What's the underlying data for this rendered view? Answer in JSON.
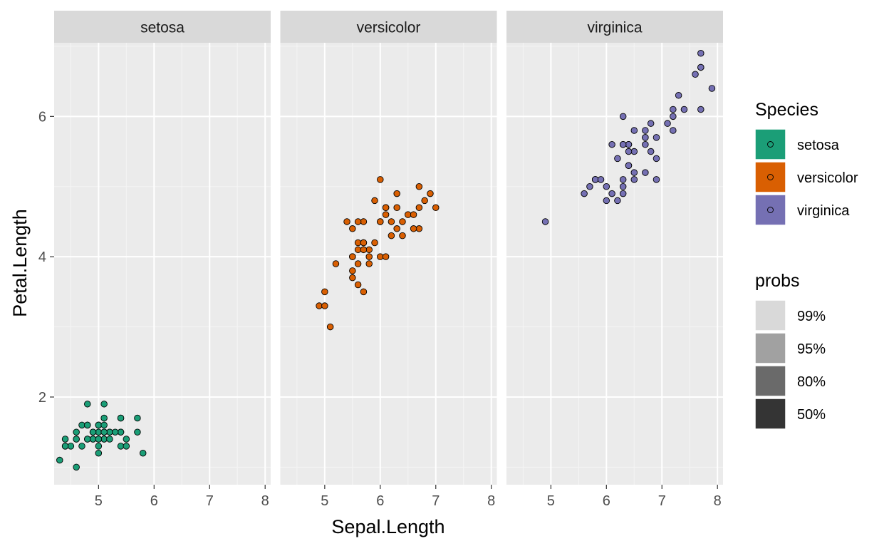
{
  "chart_data": {
    "type": "scatter",
    "facet_variable": "Species",
    "xlabel": "Sepal.Length",
    "ylabel": "Petal.Length",
    "xlim": [
      4.2,
      8.1
    ],
    "ylim": [
      0.75,
      7.05
    ],
    "x_ticks": [
      5,
      6,
      7,
      8
    ],
    "y_ticks": [
      2,
      4,
      6
    ],
    "grid": true,
    "density_levels": [
      "99%",
      "95%",
      "80%",
      "50%"
    ],
    "panels": [
      {
        "name": "setosa",
        "color": "#1B9E77",
        "points": [
          [
            5.1,
            1.4
          ],
          [
            4.9,
            1.4
          ],
          [
            4.7,
            1.3
          ],
          [
            4.6,
            1.5
          ],
          [
            5.0,
            1.4
          ],
          [
            5.4,
            1.7
          ],
          [
            4.6,
            1.4
          ],
          [
            5.0,
            1.5
          ],
          [
            4.4,
            1.4
          ],
          [
            4.9,
            1.5
          ],
          [
            5.4,
            1.5
          ],
          [
            4.8,
            1.6
          ],
          [
            4.8,
            1.4
          ],
          [
            4.3,
            1.1
          ],
          [
            5.8,
            1.2
          ],
          [
            5.7,
            1.5
          ],
          [
            5.4,
            1.3
          ],
          [
            5.1,
            1.4
          ],
          [
            5.7,
            1.7
          ],
          [
            5.1,
            1.5
          ],
          [
            5.4,
            1.7
          ],
          [
            5.1,
            1.5
          ],
          [
            4.6,
            1.0
          ],
          [
            5.1,
            1.7
          ],
          [
            4.8,
            1.9
          ],
          [
            5.0,
            1.6
          ],
          [
            5.0,
            1.6
          ],
          [
            5.2,
            1.5
          ],
          [
            5.2,
            1.4
          ],
          [
            4.7,
            1.6
          ],
          [
            4.8,
            1.6
          ],
          [
            5.4,
            1.5
          ],
          [
            5.2,
            1.5
          ],
          [
            5.5,
            1.4
          ],
          [
            4.9,
            1.5
          ],
          [
            5.0,
            1.2
          ],
          [
            5.5,
            1.3
          ],
          [
            4.9,
            1.4
          ],
          [
            4.4,
            1.3
          ],
          [
            5.1,
            1.5
          ],
          [
            5.0,
            1.3
          ],
          [
            4.5,
            1.3
          ],
          [
            4.4,
            1.3
          ],
          [
            5.0,
            1.6
          ],
          [
            5.1,
            1.9
          ],
          [
            4.8,
            1.4
          ],
          [
            5.1,
            1.6
          ],
          [
            4.6,
            1.4
          ],
          [
            5.3,
            1.5
          ],
          [
            5.0,
            1.4
          ]
        ]
      },
      {
        "name": "versicolor",
        "color": "#D95F02",
        "points": [
          [
            7.0,
            4.7
          ],
          [
            6.4,
            4.5
          ],
          [
            6.9,
            4.9
          ],
          [
            5.5,
            4.0
          ],
          [
            6.5,
            4.6
          ],
          [
            5.7,
            4.5
          ],
          [
            6.3,
            4.7
          ],
          [
            4.9,
            3.3
          ],
          [
            6.6,
            4.6
          ],
          [
            5.2,
            3.9
          ],
          [
            5.0,
            3.5
          ],
          [
            5.9,
            4.2
          ],
          [
            6.0,
            4.0
          ],
          [
            6.1,
            4.7
          ],
          [
            5.6,
            3.6
          ],
          [
            6.7,
            4.4
          ],
          [
            5.6,
            4.5
          ],
          [
            5.8,
            4.1
          ],
          [
            6.2,
            4.5
          ],
          [
            5.6,
            3.9
          ],
          [
            5.9,
            4.8
          ],
          [
            6.1,
            4.0
          ],
          [
            6.3,
            4.9
          ],
          [
            6.1,
            4.7
          ],
          [
            6.4,
            4.3
          ],
          [
            6.6,
            4.4
          ],
          [
            6.8,
            4.8
          ],
          [
            6.7,
            5.0
          ],
          [
            6.0,
            4.5
          ],
          [
            5.7,
            3.5
          ],
          [
            5.5,
            3.8
          ],
          [
            5.5,
            3.7
          ],
          [
            5.8,
            3.9
          ],
          [
            6.0,
            5.1
          ],
          [
            5.4,
            4.5
          ],
          [
            6.0,
            4.5
          ],
          [
            6.7,
            4.7
          ],
          [
            6.3,
            4.4
          ],
          [
            5.6,
            4.1
          ],
          [
            5.5,
            4.0
          ],
          [
            5.5,
            4.4
          ],
          [
            6.1,
            4.6
          ],
          [
            5.8,
            4.0
          ],
          [
            5.0,
            3.3
          ],
          [
            5.6,
            4.2
          ],
          [
            5.7,
            4.2
          ],
          [
            5.7,
            4.2
          ],
          [
            6.2,
            4.3
          ],
          [
            5.1,
            3.0
          ],
          [
            5.7,
            4.1
          ]
        ]
      },
      {
        "name": "virginica",
        "color": "#7570B3",
        "points": [
          [
            6.3,
            6.0
          ],
          [
            5.8,
            5.1
          ],
          [
            7.1,
            5.9
          ],
          [
            6.3,
            5.6
          ],
          [
            6.5,
            5.8
          ],
          [
            7.6,
            6.6
          ],
          [
            4.9,
            4.5
          ],
          [
            7.3,
            6.3
          ],
          [
            6.7,
            5.8
          ],
          [
            7.2,
            6.1
          ],
          [
            6.5,
            5.1
          ],
          [
            6.4,
            5.3
          ],
          [
            6.8,
            5.5
          ],
          [
            5.7,
            5.0
          ],
          [
            5.8,
            5.1
          ],
          [
            6.4,
            5.3
          ],
          [
            6.5,
            5.5
          ],
          [
            7.7,
            6.7
          ],
          [
            7.7,
            6.9
          ],
          [
            6.0,
            5.0
          ],
          [
            6.9,
            5.7
          ],
          [
            5.6,
            4.9
          ],
          [
            7.7,
            6.7
          ],
          [
            6.3,
            4.9
          ],
          [
            6.7,
            5.7
          ],
          [
            7.2,
            6.0
          ],
          [
            6.2,
            4.8
          ],
          [
            6.1,
            4.9
          ],
          [
            6.4,
            5.6
          ],
          [
            7.2,
            5.8
          ],
          [
            7.4,
            6.1
          ],
          [
            7.9,
            6.4
          ],
          [
            6.4,
            5.6
          ],
          [
            6.3,
            5.1
          ],
          [
            6.1,
            5.6
          ],
          [
            7.7,
            6.1
          ],
          [
            6.3,
            5.6
          ],
          [
            6.4,
            5.5
          ],
          [
            6.0,
            4.8
          ],
          [
            6.9,
            5.4
          ],
          [
            6.7,
            5.6
          ],
          [
            6.9,
            5.1
          ],
          [
            5.8,
            5.1
          ],
          [
            6.8,
            5.9
          ],
          [
            6.7,
            5.7
          ],
          [
            6.7,
            5.2
          ],
          [
            6.3,
            5.0
          ],
          [
            6.5,
            5.2
          ],
          [
            6.2,
            5.4
          ],
          [
            5.9,
            5.1
          ]
        ]
      }
    ],
    "legends": [
      {
        "title": "Species",
        "entries": [
          {
            "label": "setosa",
            "color": "#1B9E77"
          },
          {
            "label": "versicolor",
            "color": "#D95F02"
          },
          {
            "label": "virginica",
            "color": "#7570B3"
          }
        ]
      },
      {
        "title": "probs",
        "entries": [
          {
            "label": "99%",
            "shade": "#D9D9D9"
          },
          {
            "label": "95%",
            "shade": "#A1A1A1"
          },
          {
            "label": "80%",
            "shade": "#6A6A6A"
          },
          {
            "label": "50%",
            "shade": "#343434"
          }
        ]
      }
    ]
  }
}
